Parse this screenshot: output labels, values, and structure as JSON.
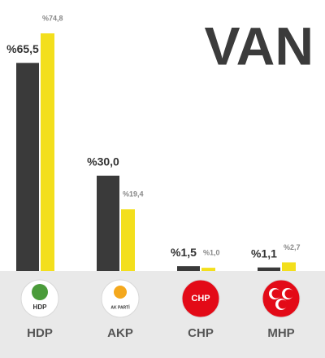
{
  "chart_data": {
    "type": "bar",
    "title": "VAN",
    "categories": [
      "HDP",
      "AKP",
      "CHP",
      "MHP"
    ],
    "logo_labels": [
      "HDP",
      "AK PARTİ",
      "CHP",
      null
    ],
    "series": [
      {
        "color": "#3a3a3a",
        "values": [
          65.5,
          30.0,
          1.5,
          1.1
        ],
        "value_labels": [
          "%65,5",
          "%30,0",
          "%1,5",
          "%1,1"
        ]
      },
      {
        "color": "#f3df1c",
        "values": [
          74.8,
          19.4,
          1.0,
          2.7
        ],
        "value_labels": [
          "%74,8",
          "%19,4",
          "%1,0",
          "%2,7"
        ]
      }
    ]
  }
}
